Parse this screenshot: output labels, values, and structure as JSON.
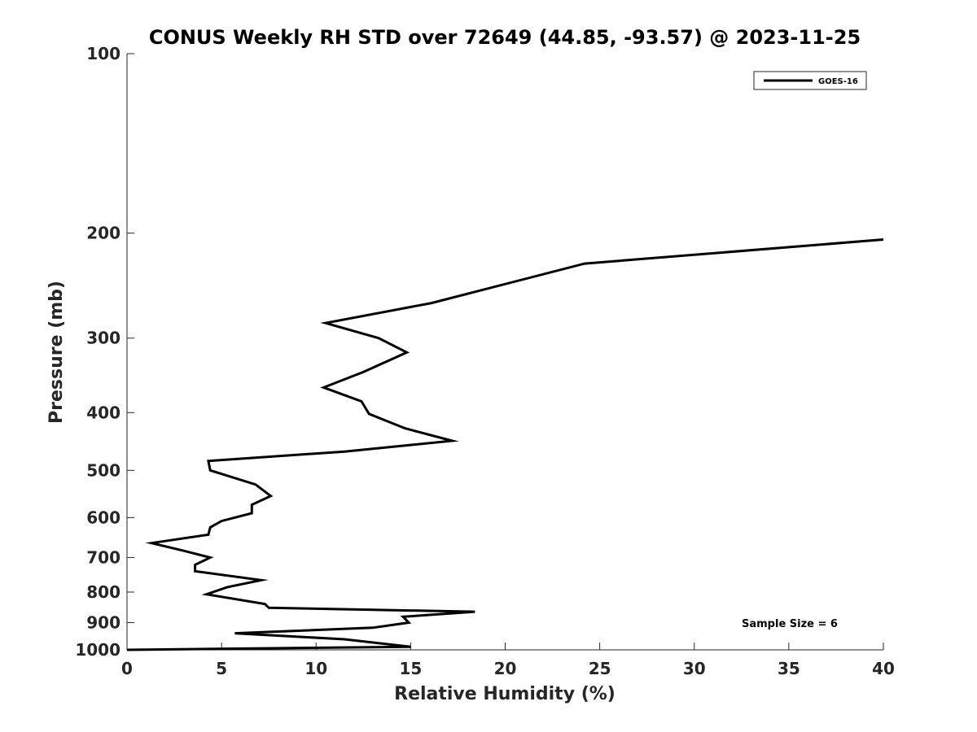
{
  "chart_data": {
    "type": "line",
    "title": "CONUS Weekly RH STD over 72649 (44.85, -93.57) @ 2023-11-25",
    "xlabel": "Relative Humidity (%)",
    "ylabel": "Pressure (mb)",
    "xlim": [
      0,
      40
    ],
    "ylim": [
      100,
      1000
    ],
    "y_scale": "log",
    "y_reversed": true,
    "x_ticks": [
      0,
      5,
      10,
      15,
      20,
      25,
      30,
      35,
      40
    ],
    "y_ticks": [
      100,
      200,
      300,
      400,
      500,
      600,
      700,
      800,
      900,
      1000
    ],
    "grid": false,
    "legend_position": "top-right",
    "annotation": "Sample Size = 6",
    "series": [
      {
        "name": "GOES-16",
        "color": "#000000",
        "points": [
          [
            40.0,
            205
          ],
          [
            24.2,
            225
          ],
          [
            16.1,
            262
          ],
          [
            10.5,
            283
          ],
          [
            13.3,
            300
          ],
          [
            14.8,
            317
          ],
          [
            12.5,
            342
          ],
          [
            10.4,
            363
          ],
          [
            12.4,
            383
          ],
          [
            12.8,
            402
          ],
          [
            14.7,
            425
          ],
          [
            17.2,
            446
          ],
          [
            11.5,
            465
          ],
          [
            4.3,
            482
          ],
          [
            4.4,
            500
          ],
          [
            6.8,
            528
          ],
          [
            7.6,
            552
          ],
          [
            6.6,
            571
          ],
          [
            6.6,
            590
          ],
          [
            5.0,
            608
          ],
          [
            4.4,
            623
          ],
          [
            4.3,
            641
          ],
          [
            1.3,
            662
          ],
          [
            3.0,
            682
          ],
          [
            4.4,
            700
          ],
          [
            3.6,
            720
          ],
          [
            3.6,
            738
          ],
          [
            7.1,
            764
          ],
          [
            5.3,
            785
          ],
          [
            4.2,
            807
          ],
          [
            7.3,
            838
          ],
          [
            7.5,
            850
          ],
          [
            18.4,
            863
          ],
          [
            14.6,
            880
          ],
          [
            14.9,
            900
          ],
          [
            13.0,
            918
          ],
          [
            5.7,
            938
          ],
          [
            11.5,
            960
          ],
          [
            15.0,
            988
          ],
          [
            0.0,
            1000
          ]
        ]
      }
    ]
  }
}
